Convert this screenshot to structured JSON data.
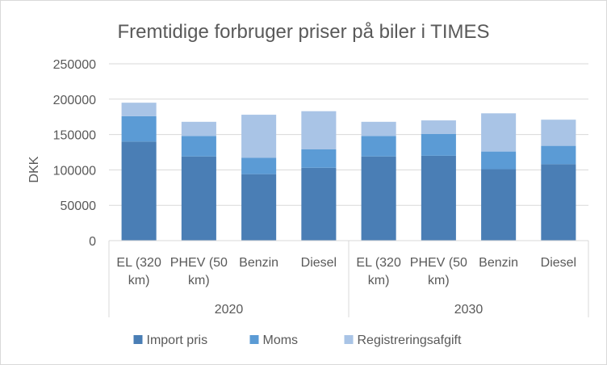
{
  "chart_data": {
    "type": "bar",
    "stacked": true,
    "title": "Fremtidige forbruger priser på  biler i TIMES",
    "ylabel": "DKK",
    "xlabel": "",
    "ylim": [
      0,
      250000
    ],
    "yticks": [
      "0",
      "50000",
      "100000",
      "150000",
      "200000",
      "250000"
    ],
    "grid": true,
    "legend_position": "bottom",
    "groups": [
      {
        "label": "2020",
        "categories": [
          [
            "EL (320",
            "km)"
          ],
          [
            "PHEV (50",
            "km)"
          ],
          [
            "Benzin"
          ],
          [
            "Diesel"
          ]
        ]
      },
      {
        "label": "2030",
        "categories": [
          [
            "EL (320",
            "km)"
          ],
          [
            "PHEV (50",
            "km)"
          ],
          [
            "Benzin"
          ],
          [
            "Diesel"
          ]
        ]
      }
    ],
    "series": [
      {
        "name": "Import pris",
        "color": "#4a7eb5",
        "values": [
          140000,
          119000,
          94000,
          103000,
          119000,
          120000,
          101000,
          108000
        ]
      },
      {
        "name": "Moms",
        "color": "#5b9bd5",
        "values": [
          36000,
          29000,
          23000,
          26000,
          29000,
          31000,
          25000,
          26000
        ]
      },
      {
        "name": "Registreringsafgift",
        "color": "#a9c4e6",
        "values": [
          19000,
          20000,
          61000,
          54000,
          20000,
          19000,
          54000,
          37000
        ]
      }
    ]
  }
}
